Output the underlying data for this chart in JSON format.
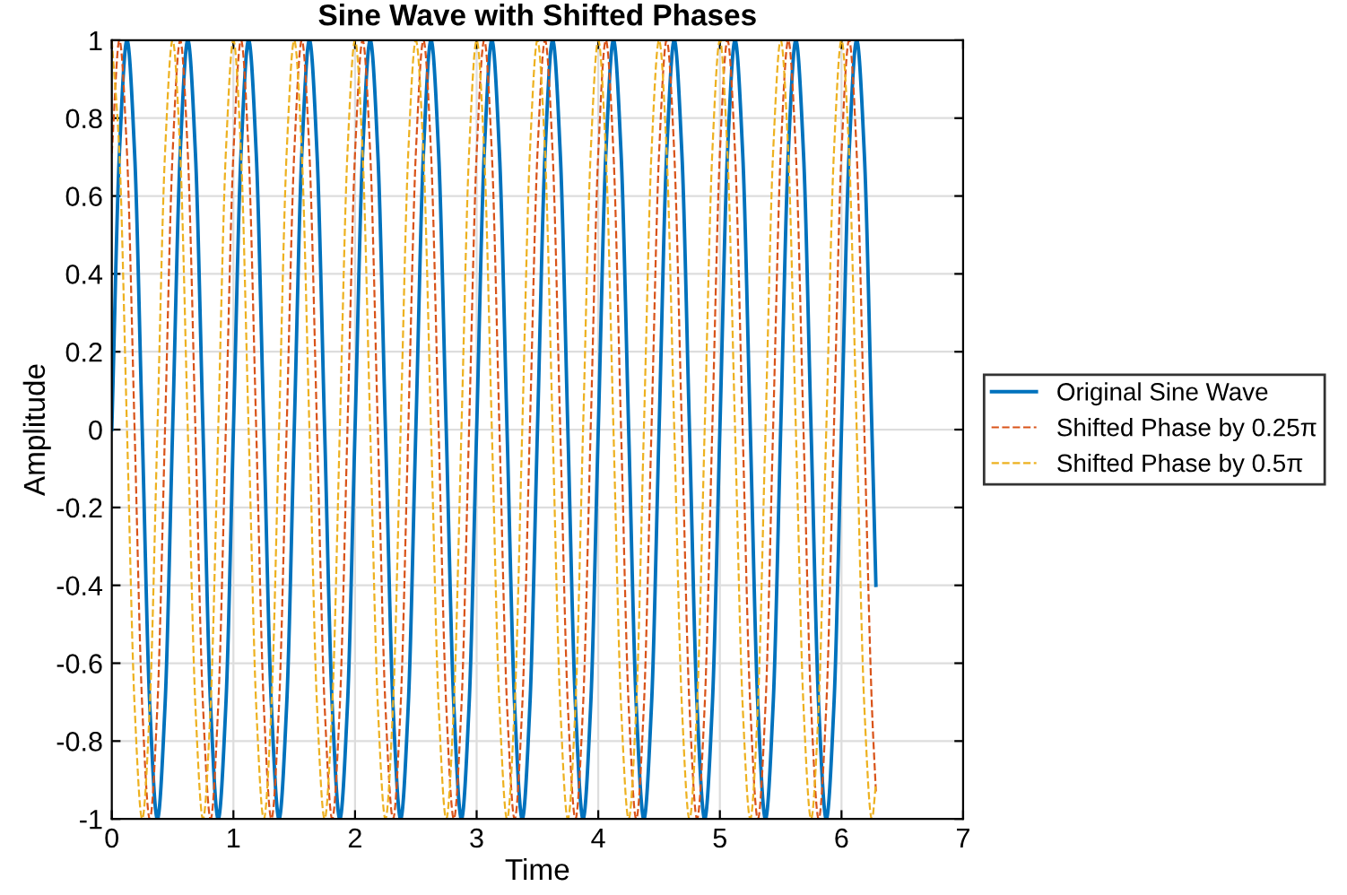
{
  "chart_data": {
    "type": "line",
    "title": "Sine Wave with Shifted Phases",
    "xlabel": "Time",
    "ylabel": "Amplitude",
    "x": [
      0,
      0.0625,
      0.125,
      0.1875,
      0.25,
      0.3125,
      0.375,
      0.4375,
      0.5,
      0.5625,
      0.625,
      0.6875,
      0.75,
      0.8125,
      0.875,
      0.9375,
      1,
      1.0625,
      1.125,
      1.1875,
      1.25,
      1.3125,
      1.375,
      1.4375,
      1.5,
      1.5625,
      1.625,
      1.6875,
      1.75,
      1.8125,
      1.875,
      1.9375,
      2,
      2.0625,
      2.125,
      2.1875,
      2.25,
      2.3125,
      2.375,
      2.4375,
      2.5,
      2.5625,
      2.625,
      2.6875,
      2.75,
      2.8125,
      2.875,
      2.9375,
      3,
      3.0625,
      3.125,
      3.1875,
      3.25,
      3.3125,
      3.375,
      3.4375,
      3.5,
      3.5625,
      3.625,
      3.6875,
      3.75,
      3.8125,
      3.875,
      3.9375,
      4,
      4.0625,
      4.125,
      4.1875,
      4.25,
      4.3125,
      4.375,
      4.4375,
      4.5,
      4.5625,
      4.625,
      4.6875,
      4.75,
      4.8125,
      4.875,
      4.9375,
      5,
      5.0625,
      5.125,
      5.1875,
      5.25,
      5.3125,
      5.375,
      5.4375,
      5.5,
      5.5625,
      5.625,
      5.6875,
      5.75,
      5.8125,
      5.875,
      5.9375,
      6,
      6.0625,
      6.125,
      6.1875,
      6.25,
      6.283
    ],
    "series": [
      {
        "name": "Original Sine Wave",
        "color": "#0072bd",
        "line_style": "solid",
        "values": [
          0,
          0.71,
          1,
          0.71,
          0,
          -0.71,
          -1,
          -0.71,
          0,
          0.71,
          1,
          0.71,
          0,
          -0.71,
          -1,
          -0.71,
          0,
          0.71,
          1,
          0.71,
          0,
          -0.71,
          -1,
          -0.71,
          0,
          0.71,
          1,
          0.71,
          0,
          -0.71,
          -1,
          -0.71,
          0,
          0.71,
          1,
          0.71,
          0,
          -0.71,
          -1,
          -0.71,
          0,
          0.71,
          1,
          0.71,
          0,
          -0.71,
          -1,
          -0.71,
          0,
          0.71,
          1,
          0.71,
          0,
          -0.71,
          -1,
          -0.71,
          0,
          0.71,
          1,
          0.71,
          0,
          -0.71,
          -1,
          -0.71,
          0,
          0.71,
          1,
          0.71,
          0,
          -0.71,
          -1,
          -0.71,
          0,
          0.71,
          1,
          0.71,
          0,
          -0.71,
          -1,
          -0.71,
          0,
          0.71,
          1,
          0.71,
          0,
          -0.71,
          -1,
          -0.71,
          0,
          0.71,
          1,
          0.71,
          0,
          -0.71,
          -1,
          -0.71,
          0,
          0.71,
          1,
          0.71,
          0,
          -0.4
        ]
      },
      {
        "name": "Shifted Phase by 0.25π",
        "color": "#d95319",
        "line_style": "dashed",
        "values": [
          0.71,
          1,
          0.71,
          0,
          -0.71,
          -1,
          -0.71,
          0,
          0.71,
          1,
          0.71,
          0,
          -0.71,
          -1,
          -0.71,
          0,
          0.71,
          1,
          0.71,
          0,
          -0.71,
          -1,
          -0.71,
          0,
          0.71,
          1,
          0.71,
          0,
          -0.71,
          -1,
          -0.71,
          0,
          0.71,
          1,
          0.71,
          0,
          -0.71,
          -1,
          -0.71,
          0,
          0.71,
          1,
          0.71,
          0,
          -0.71,
          -1,
          -0.71,
          0,
          0.71,
          1,
          0.71,
          0,
          -0.71,
          -1,
          -0.71,
          0,
          0.71,
          1,
          0.71,
          0,
          -0.71,
          -1,
          -0.71,
          0,
          0.71,
          1,
          0.71,
          0,
          -0.71,
          -1,
          -0.71,
          0,
          0.71,
          1,
          0.71,
          0,
          -0.71,
          -1,
          -0.71,
          0,
          0.71,
          1,
          0.71,
          0,
          -0.71,
          -1,
          -0.71,
          0,
          0.71,
          1,
          0.71,
          0,
          -0.71,
          -1,
          -0.71,
          0,
          0.71,
          1,
          0.71,
          0,
          -0.71,
          -0.93
        ]
      },
      {
        "name": "Shifted Phase by 0.5π",
        "color": "#edb120",
        "line_style": "dashed",
        "values": [
          1,
          0.71,
          0,
          -0.71,
          -1,
          -0.71,
          0,
          0.71,
          1,
          0.71,
          0,
          -0.71,
          -1,
          -0.71,
          0,
          0.71,
          1,
          0.71,
          0,
          -0.71,
          -1,
          -0.71,
          0,
          0.71,
          1,
          0.71,
          0,
          -0.71,
          -1,
          -0.71,
          0,
          0.71,
          1,
          0.71,
          0,
          -0.71,
          -1,
          -0.71,
          0,
          0.71,
          1,
          0.71,
          0,
          -0.71,
          -1,
          -0.71,
          0,
          0.71,
          1,
          0.71,
          0,
          -0.71,
          -1,
          -0.71,
          0,
          0.71,
          1,
          0.71,
          0,
          -0.71,
          -1,
          -0.71,
          0,
          0.71,
          1,
          0.71,
          0,
          -0.71,
          -1,
          -0.71,
          0,
          0.71,
          1,
          0.71,
          0,
          -0.71,
          -1,
          -0.71,
          0,
          0.71,
          1,
          0.71,
          0,
          -0.71,
          -1,
          -0.71,
          0,
          0.71,
          1,
          0.71,
          0,
          -0.71,
          -1,
          -0.71,
          0,
          0.71,
          1,
          0.71,
          0,
          -0.71,
          -1,
          -0.91
        ]
      }
    ],
    "xlim": [
      0,
      7
    ],
    "xticks": [
      0,
      1,
      2,
      3,
      4,
      5,
      6,
      7
    ],
    "ylim": [
      -1,
      1
    ],
    "yticks": [
      -1,
      -0.8,
      -0.6,
      -0.4,
      -0.2,
      0,
      0.2,
      0.4,
      0.6,
      0.8,
      1
    ],
    "grid": true,
    "legend": "right"
  }
}
